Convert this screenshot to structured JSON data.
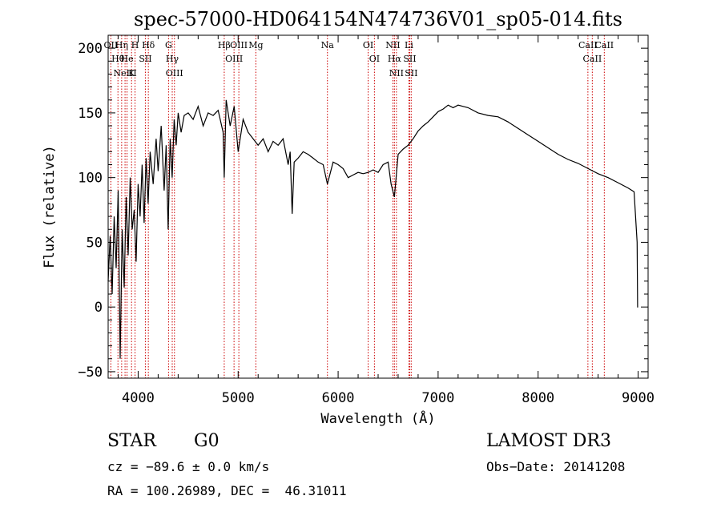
{
  "chart_data": {
    "type": "line",
    "title": "spec-57000-HD064154N474736V01_sp05-014.fits",
    "xlabel": "Wavelength (Å)",
    "ylabel": "Flux (relative)",
    "xlim": [
      3700,
      9100
    ],
    "ylim": [
      -55,
      210
    ],
    "x_ticks": [
      4000,
      5000,
      6000,
      7000,
      8000,
      9000
    ],
    "y_ticks": [
      -50,
      0,
      50,
      100,
      150,
      200
    ],
    "grid": false,
    "series": [
      {
        "x": [
          3700,
          3720,
          3740,
          3760,
          3780,
          3800,
          3820,
          3840,
          3860,
          3880,
          3900,
          3920,
          3940,
          3960,
          3980,
          4000,
          4020,
          4040,
          4060,
          4080,
          4100,
          4120,
          4150,
          4180,
          4200,
          4230,
          4260,
          4280,
          4300,
          4320,
          4340,
          4360,
          4380,
          4400,
          4430,
          4460,
          4500,
          4550,
          4600,
          4650,
          4700,
          4750,
          4800,
          4850,
          4861,
          4880,
          4920,
          4960,
          5000,
          5050,
          5100,
          5150,
          5200,
          5250,
          5300,
          5350,
          5400,
          5450,
          5500,
          5520,
          5540,
          5560,
          5600,
          5650,
          5700,
          5750,
          5800,
          5850,
          5893,
          5950,
          6000,
          6050,
          6100,
          6150,
          6200,
          6250,
          6300,
          6350,
          6400,
          6450,
          6500,
          6530,
          6563,
          6600,
          6650,
          6700,
          6750,
          6800,
          6850,
          6900,
          6950,
          7000,
          7050,
          7100,
          7150,
          7200,
          7250,
          7300,
          7400,
          7500,
          7600,
          7700,
          7800,
          7900,
          8000,
          8100,
          8200,
          8300,
          8400,
          8500,
          8600,
          8700,
          8800,
          8900,
          8960,
          8990,
          8995,
          9000
        ],
        "y": [
          20,
          55,
          10,
          70,
          30,
          90,
          -40,
          60,
          15,
          85,
          40,
          100,
          60,
          75,
          35,
          95,
          70,
          110,
          65,
          115,
          80,
          120,
          95,
          130,
          105,
          140,
          90,
          125,
          60,
          130,
          100,
          145,
          125,
          150,
          135,
          148,
          150,
          145,
          155,
          140,
          150,
          148,
          152,
          135,
          100,
          160,
          140,
          155,
          120,
          145,
          135,
          130,
          125,
          130,
          120,
          128,
          125,
          130,
          110,
          120,
          72,
          112,
          115,
          120,
          118,
          115,
          112,
          110,
          95,
          112,
          110,
          107,
          100,
          102,
          104,
          103,
          104,
          106,
          104,
          110,
          112,
          95,
          85,
          118,
          122,
          125,
          130,
          136,
          140,
          143,
          147,
          151,
          153,
          156,
          154,
          156,
          155,
          154,
          150,
          148,
          147,
          143,
          138,
          133,
          128,
          123,
          118,
          114,
          111,
          107,
          103,
          100,
          96,
          92,
          89,
          50,
          0,
          0
        ]
      }
    ],
    "lines": [
      {
        "x": 3727,
        "label": "OII"
      },
      {
        "x": 3798,
        "label": "Hθ"
      },
      {
        "x": 3835,
        "label": "Hη"
      },
      {
        "x": 3869,
        "label": "NeIII"
      },
      {
        "x": 3889,
        "label": "He"
      },
      {
        "x": 3934,
        "label": "K"
      },
      {
        "x": 3969,
        "label": "H"
      },
      {
        "x": 4072,
        "label": "SII"
      },
      {
        "x": 4102,
        "label": "Hδ"
      },
      {
        "x": 4304,
        "label": "G"
      },
      {
        "x": 4341,
        "label": "Hγ"
      },
      {
        "x": 4363,
        "label": "OIII"
      },
      {
        "x": 4861,
        "label": "Hβ"
      },
      {
        "x": 4959,
        "label": "OIII"
      },
      {
        "x": 5007,
        "label": "OIII"
      },
      {
        "x": 5177,
        "label": "Mg"
      },
      {
        "x": 5893,
        "label": "Na"
      },
      {
        "x": 6300,
        "label": "OI"
      },
      {
        "x": 6363,
        "label": "OI"
      },
      {
        "x": 6548,
        "label": "NII"
      },
      {
        "x": 6563,
        "label": "Hα"
      },
      {
        "x": 6583,
        "label": "NII"
      },
      {
        "x": 6708,
        "label": "Li"
      },
      {
        "x": 6716,
        "label": "SII"
      },
      {
        "x": 6731,
        "label": "SII"
      },
      {
        "x": 8498,
        "label": "CaII"
      },
      {
        "x": 8542,
        "label": "CaII"
      },
      {
        "x": 8662,
        "label": "CaII"
      }
    ]
  },
  "info": {
    "object_class": "STAR",
    "subclass": "G0",
    "survey": "LAMOST DR3",
    "cz": "cz = −89.6 ± 0.0 km/s",
    "obs_date": "Obs−Date: 20141208",
    "radec": "RA = 100.26989, DEC =  46.31011"
  },
  "colors": {
    "spectrum": "#000000",
    "line_markers": "#cc0000"
  }
}
